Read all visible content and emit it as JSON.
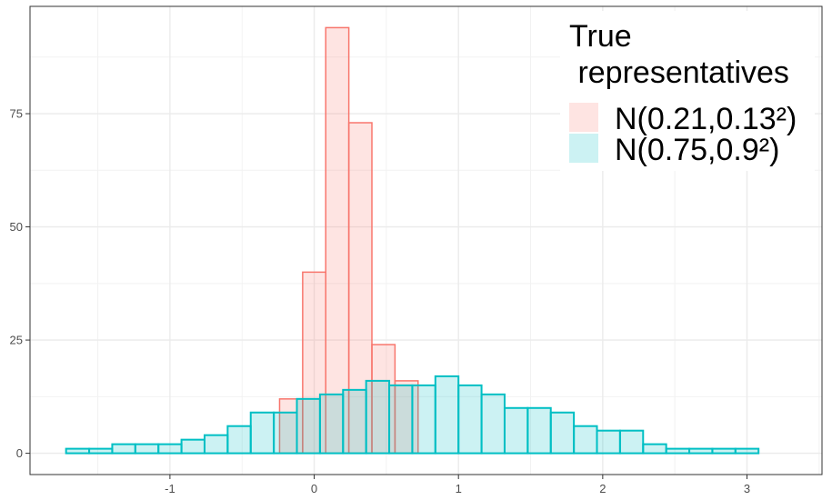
{
  "chart_data": {
    "type": "histogram",
    "xlim": [
      -1.97,
      3.52
    ],
    "ylim": [
      -4.7,
      98.7
    ],
    "x_ticks": [
      {
        "value": -1,
        "label": "-1"
      },
      {
        "value": 0,
        "label": "0"
      },
      {
        "value": 1,
        "label": "1"
      },
      {
        "value": 2,
        "label": "2"
      },
      {
        "value": 3,
        "label": "3"
      }
    ],
    "y_ticks": [
      {
        "value": 0,
        "label": "0"
      },
      {
        "value": 25,
        "label": "25"
      },
      {
        "value": 50,
        "label": "50"
      },
      {
        "value": 75,
        "label": "75"
      }
    ],
    "grid": true,
    "legend_position": "top-right",
    "legend": {
      "title_line1": "True",
      "title_line2": " representatives",
      "entries": [
        {
          "label": "N(0.21,0.13²)",
          "series_index": 0
        },
        {
          "label": "N(0.75,0.9²)",
          "series_index": 1
        }
      ]
    },
    "bin_width": 0.16,
    "series": [
      {
        "name": "N(0.21,0.13²)",
        "fill": "#F8766D",
        "stroke": "#F8766D",
        "bins": [
          {
            "x0": -0.24,
            "x1": -0.08,
            "count": 12
          },
          {
            "x0": -0.08,
            "x1": 0.08,
            "count": 40
          },
          {
            "x0": 0.08,
            "x1": 0.24,
            "count": 94
          },
          {
            "x0": 0.24,
            "x1": 0.4,
            "count": 73
          },
          {
            "x0": 0.4,
            "x1": 0.56,
            "count": 24
          },
          {
            "x0": 0.56,
            "x1": 0.72,
            "count": 16
          }
        ]
      },
      {
        "name": "N(0.75,0.9²)",
        "fill": "#00BFC4",
        "stroke": "#00BFC4",
        "bins": [
          {
            "x0": -1.72,
            "x1": -1.56,
            "count": 1
          },
          {
            "x0": -1.56,
            "x1": -1.4,
            "count": 1
          },
          {
            "x0": -1.4,
            "x1": -1.24,
            "count": 2
          },
          {
            "x0": -1.24,
            "x1": -1.08,
            "count": 2
          },
          {
            "x0": -1.08,
            "x1": -0.92,
            "count": 2
          },
          {
            "x0": -0.92,
            "x1": -0.76,
            "count": 3
          },
          {
            "x0": -0.76,
            "x1": -0.6,
            "count": 4
          },
          {
            "x0": -0.6,
            "x1": -0.44,
            "count": 6
          },
          {
            "x0": -0.44,
            "x1": -0.28,
            "count": 9
          },
          {
            "x0": -0.28,
            "x1": -0.12,
            "count": 9
          },
          {
            "x0": -0.12,
            "x1": 0.04,
            "count": 12
          },
          {
            "x0": 0.04,
            "x1": 0.2,
            "count": 13
          },
          {
            "x0": 0.2,
            "x1": 0.36,
            "count": 14
          },
          {
            "x0": 0.36,
            "x1": 0.52,
            "count": 16
          },
          {
            "x0": 0.52,
            "x1": 0.68,
            "count": 15
          },
          {
            "x0": 0.68,
            "x1": 0.84,
            "count": 15
          },
          {
            "x0": 0.84,
            "x1": 1.0,
            "count": 17
          },
          {
            "x0": 1.0,
            "x1": 1.16,
            "count": 15
          },
          {
            "x0": 1.16,
            "x1": 1.32,
            "count": 13
          },
          {
            "x0": 1.32,
            "x1": 1.48,
            "count": 10
          },
          {
            "x0": 1.48,
            "x1": 1.64,
            "count": 10
          },
          {
            "x0": 1.64,
            "x1": 1.8,
            "count": 9
          },
          {
            "x0": 1.8,
            "x1": 1.96,
            "count": 6
          },
          {
            "x0": 1.96,
            "x1": 2.12,
            "count": 5
          },
          {
            "x0": 2.12,
            "x1": 2.28,
            "count": 5
          },
          {
            "x0": 2.28,
            "x1": 2.44,
            "count": 2
          },
          {
            "x0": 2.44,
            "x1": 2.6,
            "count": 1
          },
          {
            "x0": 2.6,
            "x1": 2.76,
            "count": 1
          },
          {
            "x0": 2.76,
            "x1": 2.92,
            "count": 1
          },
          {
            "x0": 2.92,
            "x1": 3.08,
            "count": 1
          }
        ]
      }
    ]
  }
}
